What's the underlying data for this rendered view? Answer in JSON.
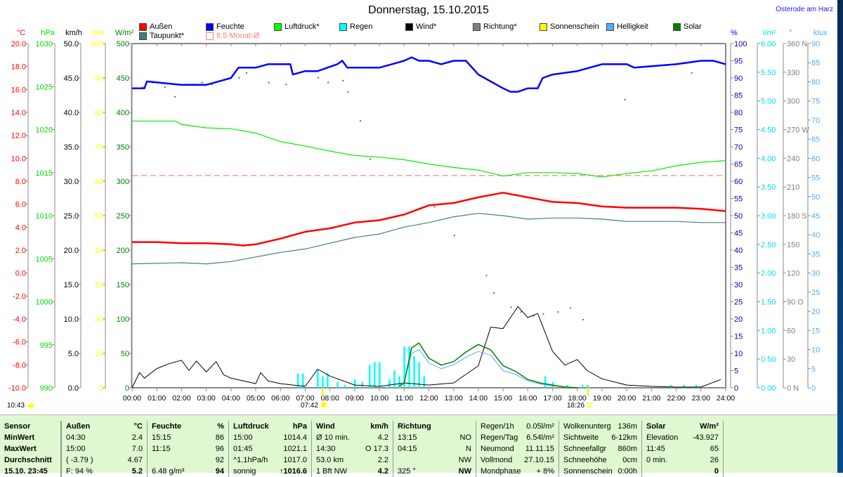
{
  "title": "Donnerstag, 15.10.2015",
  "location": "Osterode am Harz",
  "legend": [
    {
      "label": "Außen",
      "color": "#ff0000"
    },
    {
      "label": "Feuchte",
      "color": "#0000ff"
    },
    {
      "label": "Luftdruck*",
      "color": "#00ff00"
    },
    {
      "label": "Regen",
      "color": "#00ffff"
    },
    {
      "label": "Wind*",
      "color": "#000000"
    },
    {
      "label": "Richtung*",
      "color": "#808080"
    },
    {
      "label": "Sonnenschein",
      "color": "#ffff00"
    },
    {
      "label": "Helligkeit",
      "color": "#55aaff"
    },
    {
      "label": "Solar",
      "color": "#008000"
    },
    {
      "label": "Taupunkt*",
      "color": "#408080"
    },
    {
      "label": "8.5 Monat-Ø",
      "color": "#ff8080"
    }
  ],
  "footer": {
    "moonrise": "10:43",
    "sunrise": "07:42",
    "sunset": "18:26"
  },
  "chart_data": {
    "type": "line",
    "title": "Donnerstag, 15.10.2015",
    "x_ticks": [
      "00:00",
      "01:00",
      "02:00",
      "03:00",
      "04:00",
      "05:00",
      "06:00",
      "07:00",
      "08:00",
      "09:00",
      "10:00",
      "11:00",
      "12:00",
      "13:00",
      "14:00",
      "15:00",
      "16:00",
      "17:00",
      "18:00",
      "19:00",
      "20:00",
      "21:00",
      "22:00",
      "23:00",
      "24:00"
    ],
    "xlim": [
      0,
      24
    ],
    "axes": [
      {
        "id": "temp",
        "unit": "°C",
        "color": "#ff0000",
        "side": "left",
        "range": [
          -10,
          20
        ],
        "step": 2,
        "dec": 1
      },
      {
        "id": "press",
        "unit": "hPa",
        "color": "#00dd00",
        "side": "left",
        "range": [
          990,
          1030
        ],
        "step": 5,
        "dec": 0
      },
      {
        "id": "wind",
        "unit": "km/h",
        "color": "#000000",
        "side": "left",
        "range": [
          0,
          50
        ],
        "step": 5,
        "dec": 1
      },
      {
        "id": "min",
        "unit": "min",
        "color": "#ffff00",
        "side": "left",
        "range": [
          0,
          100
        ],
        "step": 10,
        "dec": 0
      },
      {
        "id": "solar",
        "unit": "W/m²",
        "color": "#008000",
        "side": "left",
        "range": [
          0,
          500
        ],
        "step": 50,
        "dec": 0
      },
      {
        "id": "hum",
        "unit": "%",
        "color": "#0000cc",
        "side": "right",
        "range": [
          0,
          100
        ],
        "step": 5,
        "dec": 0
      },
      {
        "id": "rain",
        "unit": "l/m²",
        "color": "#00e0e0",
        "side": "right",
        "range": [
          0,
          6
        ],
        "step": 0.5,
        "dec": 2
      },
      {
        "id": "dir",
        "unit": "°",
        "color": "#808080",
        "side": "right",
        "range": [
          0,
          360
        ],
        "step": 30,
        "dec": 0,
        "labels": {
          "360": "360 N",
          "270": "270 W",
          "180": "180 S",
          "90": "90  O",
          "0": "0   N"
        }
      },
      {
        "id": "klux",
        "unit": "klux",
        "color": "#55aaff",
        "side": "right",
        "range": [
          0,
          90
        ],
        "step": 5,
        "dec": 0
      }
    ],
    "monthly_avg": {
      "label": "8.5 Monat-Ø",
      "value": 8.5,
      "axis": "temp"
    },
    "series": [
      {
        "name": "Außen",
        "axis": "temp",
        "color": "#ff0000",
        "width": 2.5,
        "x": [
          0,
          1,
          2,
          3,
          4,
          4.5,
          5,
          6,
          7,
          8,
          9,
          10,
          11,
          12,
          13,
          14,
          15,
          16,
          17,
          18,
          19,
          20,
          21,
          22,
          23,
          24
        ],
        "y": [
          2.7,
          2.7,
          2.6,
          2.6,
          2.5,
          2.4,
          2.5,
          3.0,
          3.6,
          3.9,
          4.4,
          4.6,
          5.1,
          5.9,
          6.1,
          6.6,
          7.0,
          6.6,
          6.2,
          6.1,
          5.8,
          5.7,
          5.7,
          5.7,
          5.6,
          5.4
        ]
      },
      {
        "name": "Taupunkt*",
        "axis": "temp",
        "color": "#408080",
        "width": 1.2,
        "x": [
          0,
          2,
          3,
          4,
          5,
          6,
          7,
          8,
          9,
          10,
          11,
          12,
          13,
          14,
          15,
          16,
          17,
          18,
          19,
          20,
          21,
          22,
          23,
          24
        ],
        "y": [
          0.8,
          0.9,
          0.8,
          1.0,
          1.4,
          1.8,
          2.1,
          2.6,
          3.1,
          3.4,
          4.0,
          4.4,
          4.9,
          5.2,
          5.0,
          4.7,
          4.8,
          4.8,
          4.7,
          4.5,
          4.5,
          4.5,
          4.4,
          4.4
        ]
      },
      {
        "name": "Feuchte",
        "axis": "hum",
        "color": "#0000ff",
        "width": 2.5,
        "x": [
          0,
          0.5,
          0.6,
          2,
          3,
          3.5,
          4,
          4.3,
          5,
          5.5,
          6.4,
          6.5,
          7,
          7.5,
          8.3,
          8.5,
          8.7,
          10,
          10.5,
          11,
          11.3,
          11.6,
          12,
          12.5,
          13,
          13.5,
          14,
          15,
          15.3,
          15.6,
          16,
          16.4,
          16.6,
          17,
          18,
          18.5,
          19,
          20,
          20.3,
          22,
          23,
          23.5,
          24
        ],
        "y": [
          87,
          87,
          89,
          88,
          88,
          89,
          90,
          93,
          93,
          94,
          94,
          91,
          92,
          92,
          94,
          95,
          93,
          93,
          94,
          95,
          96,
          95,
          95,
          94,
          95,
          95,
          91,
          87,
          86,
          86,
          87,
          87,
          90,
          91,
          92,
          93,
          94,
          94,
          93,
          94,
          95,
          95,
          94
        ]
      },
      {
        "name": "Luftdruck*",
        "axis": "press",
        "color": "#00ee00",
        "width": 1.2,
        "x": [
          0,
          1.75,
          2,
          3,
          4,
          5,
          6,
          7,
          8,
          9,
          10,
          11,
          12,
          13,
          14,
          15,
          16,
          17,
          18,
          19,
          20,
          21,
          22,
          23,
          24
        ],
        "y": [
          1021.0,
          1021.0,
          1020.6,
          1020.2,
          1020.1,
          1019.6,
          1018.6,
          1018.1,
          1017.5,
          1017.0,
          1016.8,
          1016.5,
          1016.0,
          1015.6,
          1015.3,
          1014.6,
          1015.0,
          1015.0,
          1014.9,
          1014.5,
          1014.9,
          1015.2,
          1015.8,
          1016.2,
          1016.4
        ]
      },
      {
        "name": "Wind*",
        "axis": "wind",
        "color": "#000000",
        "width": 1,
        "x": [
          0,
          0.3,
          0.5,
          1,
          1.5,
          2,
          2.3,
          2.6,
          3,
          3.4,
          3.7,
          4,
          5,
          5.2,
          5.5,
          6,
          7,
          7.5,
          8,
          9,
          10,
          11,
          12,
          13,
          14,
          14.5,
          15,
          15.6,
          16,
          16.4,
          17,
          17.5,
          18,
          18.4,
          19,
          20,
          21,
          22,
          23,
          23.8
        ],
        "y": [
          0,
          2.2,
          1.4,
          2.8,
          3.5,
          4.0,
          2.5,
          3.9,
          2.3,
          3.8,
          1.9,
          1.4,
          0.6,
          2.2,
          1.0,
          0.6,
          0.2,
          2.7,
          1.7,
          0.4,
          0.2,
          0.7,
          0.4,
          0.7,
          3.2,
          8.8,
          8.6,
          11.8,
          10.2,
          10.8,
          5.3,
          3.3,
          4.1,
          2.5,
          1.3,
          0.4,
          0.2,
          0.1,
          0.1,
          1.2
        ]
      },
      {
        "name": "Helligkeit",
        "axis": "klux",
        "color": "#55aaff",
        "width": 1,
        "x": [
          10.8,
          11,
          11.3,
          11.6,
          12,
          12.5,
          13,
          13.5,
          14,
          14.5,
          15,
          15.5,
          16,
          16.5,
          17,
          17.5,
          18
        ],
        "y": [
          0.5,
          1.5,
          9.0,
          10.0,
          6.5,
          5.0,
          6.0,
          8.0,
          9.5,
          8.5,
          4.5,
          3.5,
          1.8,
          1.0,
          0.5,
          0.3,
          0
        ]
      },
      {
        "name": "Solar",
        "axis": "solar",
        "color": "#008000",
        "width": 1.5,
        "x": [
          10.8,
          11,
          11.3,
          11.6,
          12,
          12.5,
          13,
          13.5,
          14,
          14.5,
          15,
          15.5,
          16,
          16.5,
          17,
          17.5,
          18
        ],
        "y": [
          2,
          7,
          58,
          65,
          43,
          33,
          38,
          52,
          63,
          55,
          32,
          24,
          12,
          7,
          4,
          1,
          0
        ]
      }
    ],
    "rain_bars": {
      "name": "Regen",
      "axis": "rain",
      "color": "#00ffff",
      "x": [
        6.7,
        6.9,
        7.5,
        7.7,
        7.9,
        8.3,
        8.6,
        9.0,
        9.3,
        9.6,
        9.8,
        10.0,
        10.4,
        10.6,
        10.8,
        11.0,
        11.2,
        11.4,
        11.6,
        11.8,
        16.7,
        17.0,
        17.6,
        18.2,
        18.4,
        21.8,
        22.3,
        22.8
      ],
      "y": [
        0.25,
        0.25,
        0.3,
        0.2,
        0.25,
        0.1,
        0.05,
        0.15,
        0.1,
        0.4,
        0.45,
        0.45,
        0.15,
        0.3,
        0.2,
        0.72,
        0.72,
        0.55,
        0.45,
        0.2,
        0.2,
        0.1,
        0.05,
        0.05,
        0.05,
        0.05,
        0.05,
        0.05
      ]
    },
    "direction_points": {
      "name": "Richtung*",
      "axis": "dir",
      "x": [
        0.4,
        0.8,
        1.3,
        1.7,
        2.4,
        2.8,
        3.2,
        4.3,
        4.6,
        5.5,
        6.2,
        7.5,
        7.9,
        8.5,
        8.7,
        9.2,
        9.6,
        12.2,
        13.0,
        14.3,
        14.6,
        15.3,
        15.7,
        16.2,
        16.6,
        17.2,
        17.7,
        18.2,
        19.9,
        22.6
      ],
      "y": [
        315,
        320,
        315,
        305,
        318,
        320,
        318,
        325,
        330,
        320,
        318,
        325,
        320,
        322,
        310,
        280,
        240,
        190,
        160,
        118,
        100,
        85,
        80,
        76,
        78,
        80,
        84,
        72,
        302,
        330
      ]
    }
  },
  "table": {
    "groups": [
      {
        "name": "sensor",
        "head": [
          "Sensor",
          ""
        ],
        "rows": [
          [
            "MinWert",
            ""
          ],
          [
            "MaxWert",
            ""
          ],
          [
            "Durchschnitt",
            ""
          ],
          [
            "15.10. 23:45",
            ""
          ]
        ],
        "bold_left": true
      },
      {
        "name": "aussen",
        "head": [
          "Außen",
          "°C"
        ],
        "rows": [
          [
            "04:30",
            "2.4"
          ],
          [
            "15:00",
            "7.0"
          ],
          [
            "( -3.79 )",
            "4.67"
          ],
          [
            "F: 94 %",
            "5.2"
          ]
        ]
      },
      {
        "name": "feuchte",
        "head": [
          "Feuchte",
          "%"
        ],
        "rows": [
          [
            "15:15",
            "86"
          ],
          [
            "11:15",
            "96"
          ],
          [
            "",
            "92"
          ],
          [
            "6.48 g/m³",
            "94"
          ]
        ]
      },
      {
        "name": "luftdruck",
        "head": [
          "Luftdruck",
          "hPa"
        ],
        "rows": [
          [
            "15:00",
            "1014.4"
          ],
          [
            "01:45",
            "1021.1"
          ],
          [
            "^1.1hPa/h",
            "1017.0"
          ],
          [
            "sonnig",
            "↑1016.6"
          ]
        ]
      },
      {
        "name": "wind",
        "head": [
          "Wind",
          "km/h"
        ],
        "rows": [
          [
            "Ø 10 min.",
            "4.2"
          ],
          [
            "14:30",
            "O 17.3"
          ],
          [
            "53.0 km",
            "2.2"
          ],
          [
            "1 Bft NW",
            "4.2"
          ]
        ]
      },
      {
        "name": "richtung",
        "head": [
          "Richtung",
          ""
        ],
        "rows": [
          [
            "13:15",
            "NO"
          ],
          [
            "04:15",
            "N"
          ],
          [
            "",
            "NW"
          ],
          [
            "325 °",
            "NW"
          ]
        ]
      },
      {
        "name": "regen-mond",
        "plain": true,
        "rows": [
          [
            "Regen/1h",
            "0.05l/m²"
          ],
          [
            "Regen/Tag",
            "6.54l/m²"
          ],
          [
            "Neumond",
            "11.11.15"
          ],
          [
            "Vollmond",
            "27.10.15"
          ],
          [
            "Mondphase",
            "+ 8%"
          ]
        ]
      },
      {
        "name": "wolken",
        "plain": true,
        "rows": [
          [
            "Wolkenunterg",
            "136m"
          ],
          [
            "Sichtweite",
            "6-12km"
          ],
          [
            "Schneefallgr",
            "860m"
          ],
          [
            "Schneehöhe",
            "0cm"
          ],
          [
            "Sonnenschein",
            "0:00h"
          ]
        ]
      },
      {
        "name": "solar",
        "head": [
          "Solar",
          "W/m²"
        ],
        "rows": [
          [
            "Elevation",
            "-43.927"
          ],
          [
            "11:45",
            "65"
          ],
          [
            "0 min.",
            "26"
          ],
          [
            "",
            "0"
          ]
        ]
      }
    ]
  }
}
